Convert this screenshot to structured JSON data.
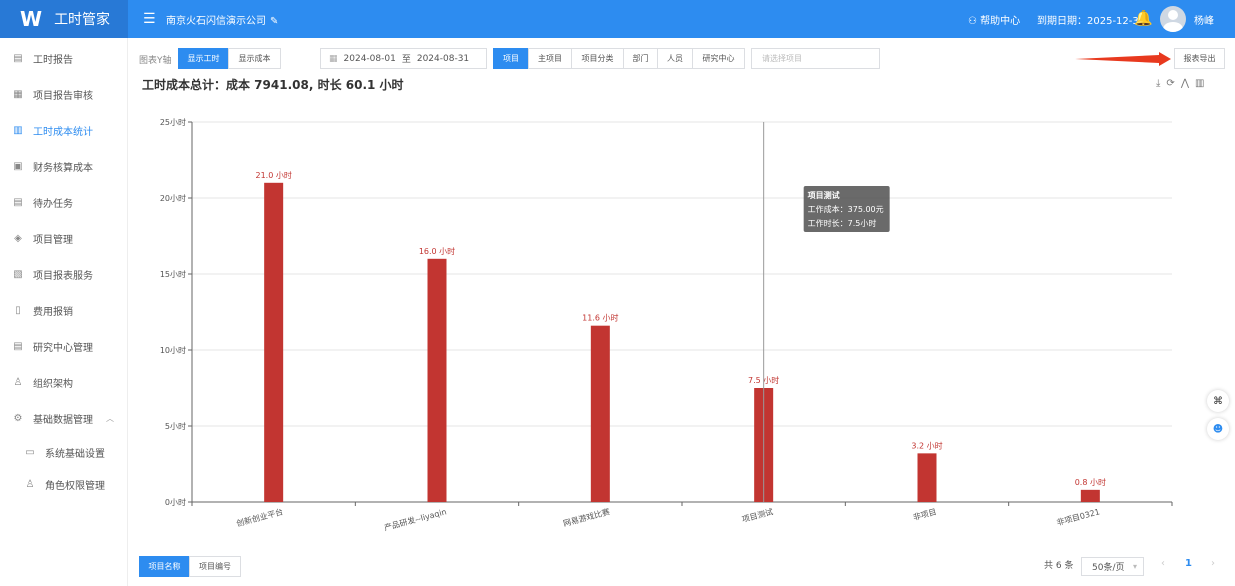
{
  "app": {
    "logo": "W",
    "title": "工时管家",
    "company": "南京火石闪信演示公司",
    "help": "帮助中心",
    "expire": "到期日期：2025-12-31",
    "user": "杨峰"
  },
  "icons": {
    "menu": "menu-icon",
    "edit": "edit-icon",
    "help": "user-help-icon",
    "bell": "bell-icon"
  },
  "sidebar": {
    "items": [
      {
        "label": "工时报告",
        "icon": "report-icon"
      },
      {
        "label": "项目报告审核",
        "icon": "audit-icon"
      },
      {
        "label": "工时成本统计",
        "icon": "chart-icon",
        "active": true
      },
      {
        "label": "财务核算成本",
        "icon": "finance-icon"
      },
      {
        "label": "待办任务",
        "icon": "todo-icon"
      },
      {
        "label": "项目管理",
        "icon": "layers-icon"
      },
      {
        "label": "项目报表服务",
        "icon": "table-icon"
      },
      {
        "label": "费用报销",
        "icon": "receipt-icon"
      },
      {
        "label": "研究中心管理",
        "icon": "center-icon"
      },
      {
        "label": "组织架构",
        "icon": "org-icon"
      },
      {
        "label": "基础数据管理",
        "icon": "settings-icon"
      },
      {
        "label": "系统基础设置",
        "icon": "system-icon"
      },
      {
        "label": "角色权限管理",
        "icon": "role-icon"
      }
    ]
  },
  "toolbar": {
    "yaxis_label": "图表Y轴",
    "show_hours": "显示工时",
    "show_cost": "显示成本",
    "date_start": "2024-08-01",
    "date_sep": "至",
    "date_end": "2024-08-31",
    "dims": [
      "项目",
      "主项目",
      "项目分类",
      "部门",
      "人员",
      "研究中心"
    ],
    "project_placeholder": "请选择项目",
    "export": "报表导出"
  },
  "summary": {
    "title": "工时成本总计：成本 7941.08, 时长 60.1 小时"
  },
  "tooltip": {
    "title": "项目测试",
    "cost": "工作成本：375.00元",
    "hours": "工作时长：7.5小时"
  },
  "bottom": {
    "tabs": [
      "项目名称",
      "项目编号"
    ],
    "total": "共 6 条",
    "page_size": "50条/页",
    "current_page": "1"
  },
  "chart_data": {
    "type": "bar",
    "categories": [
      "创新创业平台",
      "产品研发--liyaqin",
      "网易游戏比赛",
      "项目测试",
      "非项目",
      "非项目0321"
    ],
    "values": [
      21.0,
      16.0,
      11.6,
      7.5,
      3.2,
      0.8
    ],
    "data_labels": [
      "21.0 小时",
      "16.0 小时",
      "11.6 小时",
      "7.5 小时",
      "3.2 小时",
      "0.8 小时"
    ],
    "y_ticks": [
      0,
      5,
      10,
      15,
      20,
      25
    ],
    "y_tick_labels": [
      "0小时",
      "5小时",
      "10小时",
      "15小时",
      "20小时",
      "25小时"
    ],
    "ylim": [
      0,
      25
    ],
    "grid": true,
    "bar_color": "#c23531",
    "title": "",
    "xlabel": "",
    "ylabel": ""
  }
}
